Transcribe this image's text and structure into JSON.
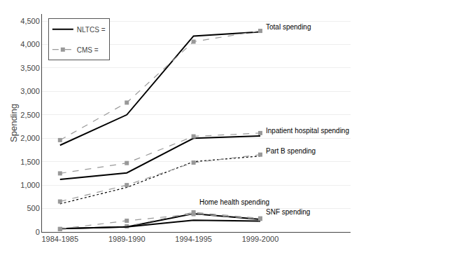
{
  "chart_data": {
    "type": "line",
    "ylabel": "Spending",
    "categories": [
      "1984-1985",
      "1989-1990",
      "1994-1995",
      "1999-2000"
    ],
    "series": [
      {
        "name": "NLTCS =",
        "color": "#000000",
        "line_style": "solid",
        "values": [
          1850,
          2500,
          4180,
          4270
        ]
      },
      {
        "name": "CMS =",
        "color": "#999999",
        "line_style": "dashed",
        "marker": "square",
        "values": [
          1960,
          2760,
          4060,
          4290
        ]
      },
      {
        "name": "NLTCS =",
        "color": "#000000",
        "line_style": "solid",
        "values": [
          1120,
          1260,
          2000,
          2050
        ]
      },
      {
        "name": "CMS =",
        "color": "#999999",
        "line_style": "dashed",
        "marker": "square",
        "values": [
          1250,
          1470,
          2040,
          2110
        ]
      },
      {
        "name": "NLTCS =",
        "color": "#000000",
        "line_style": "dotted",
        "values": [
          600,
          950,
          1500,
          1620
        ]
      },
      {
        "name": "CMS =",
        "color": "#999999",
        "line_style": "dashed",
        "marker": "square",
        "values": [
          650,
          1000,
          1480,
          1650
        ]
      },
      {
        "name": "NLTCS =",
        "color": "#000000",
        "line_style": "solid",
        "values": [
          70,
          110,
          390,
          270
        ]
      },
      {
        "name": "CMS =",
        "color": "#999999",
        "line_style": "dashed",
        "marker": "square",
        "values": [
          60,
          120,
          420,
          290
        ]
      },
      {
        "name": "NLTCS =",
        "color": "#000000",
        "line_style": "solid",
        "values": [
          70,
          110,
          250,
          230
        ]
      },
      {
        "name": "CMS =",
        "color": "#999999",
        "line_style": "dashed",
        "marker": "square",
        "values": [
          65,
          240,
          380,
          280
        ]
      }
    ],
    "ylim": [
      0,
      4650
    ],
    "yticks": [
      0,
      500,
      {
        "value": 1000,
        "label": "1,000"
      },
      {
        "value": 1500,
        "label": "1,500"
      },
      {
        "value": 2000,
        "label": "2,000"
      },
      {
        "value": 2500,
        "label": "2,500"
      },
      {
        "value": 3000,
        "label": "3,000"
      },
      {
        "value": 3500,
        "label": "3,500"
      },
      {
        "value": 4000,
        "label": "4,000"
      },
      {
        "value": 4500,
        "label": "4,500"
      }
    ],
    "grid": true,
    "legend": "upper left",
    "annotations": [
      {
        "text": "Total spending",
        "x": "1999-2000",
        "y": 4380
      },
      {
        "text": "Inpatient hospital spending",
        "x": "1999-2000",
        "y": 2160
      },
      {
        "text": "Part B spending",
        "x": "1999-2000",
        "y": 1720
      },
      {
        "text": "Home health spending",
        "x": "1994-1995",
        "y": 640
      },
      {
        "text": "SNF spending",
        "x": "1999-2000",
        "y": 430
      }
    ]
  }
}
